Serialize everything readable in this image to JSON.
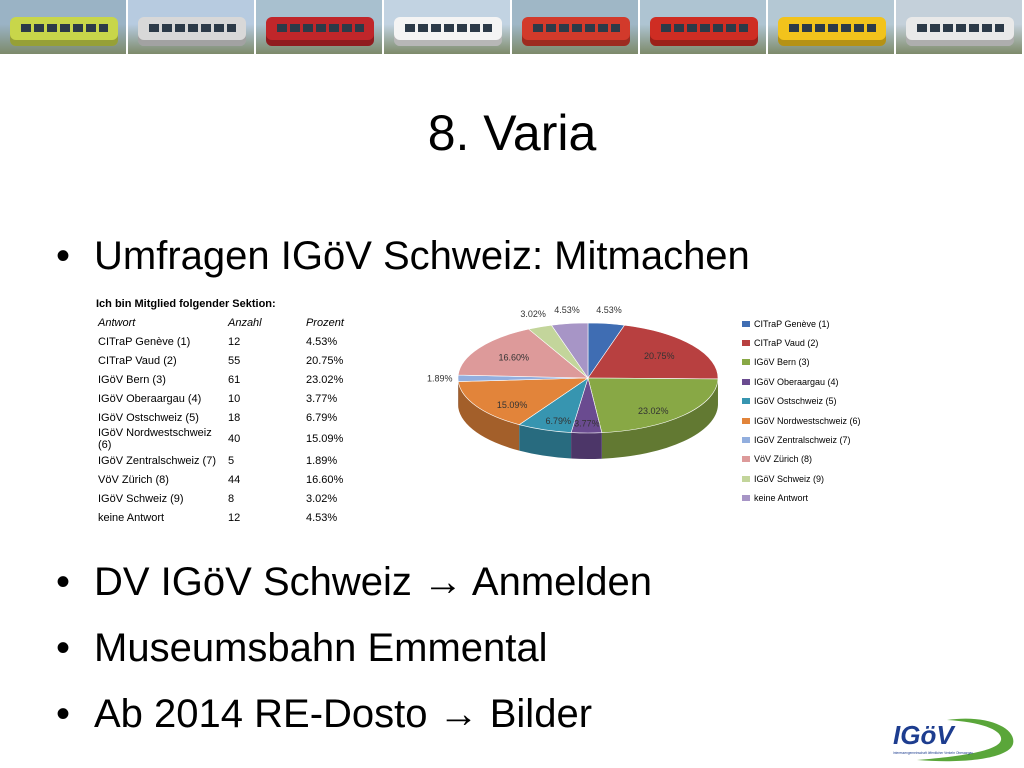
{
  "banner": {
    "photos": [
      {
        "name": "photo-train-green",
        "sky": "#9ab3c5",
        "vehicle": "#c8d64a"
      },
      {
        "name": "photo-cable-car",
        "sky": "#b7cbe0",
        "vehicle": "#d8d8d8"
      },
      {
        "name": "photo-red-train",
        "sky": "#a8c0cf",
        "vehicle": "#c0262a"
      },
      {
        "name": "photo-boat",
        "sky": "#c2d3e2",
        "vehicle": "#f4f4f4"
      },
      {
        "name": "photo-tram",
        "sky": "#9fb7c6",
        "vehicle": "#d23a2b"
      },
      {
        "name": "photo-bus-red",
        "sky": "#aec4d2",
        "vehicle": "#cf2d23"
      },
      {
        "name": "photo-bus-yellow",
        "sky": "#b4c8d4",
        "vehicle": "#f2c31c"
      },
      {
        "name": "photo-train-white",
        "sky": "#c4d0da",
        "vehicle": "#e9e9e9"
      }
    ]
  },
  "slide": {
    "title": "8. Varia",
    "bullet_marker": "•",
    "bullets": [
      "Umfragen IGöV Schweiz: Mitmachen",
      "DV IGöV Schweiz → Anmelden",
      "Museumsbahn Emmental",
      "Ab 2014 RE-Dosto → Bilder"
    ]
  },
  "survey_table": {
    "heading": "Ich bin Mitglied folgender Sektion:",
    "columns": [
      "Antwort",
      "Anzahl",
      "Prozent"
    ],
    "rows": [
      [
        "CITraP Genève (1)",
        "12",
        "4.53%"
      ],
      [
        "CITraP Vaud (2)",
        "55",
        "20.75%"
      ],
      [
        "IGöV Bern (3)",
        "61",
        "23.02%"
      ],
      [
        "IGöV Oberaargau (4)",
        "10",
        "3.77%"
      ],
      [
        "IGöV Ostschweiz (5)",
        "18",
        "6.79%"
      ],
      [
        "IGöV Nordwestschweiz (6)",
        "40",
        "15.09%"
      ],
      [
        "IGöV Zentralschweiz (7)",
        "5",
        "1.89%"
      ],
      [
        "VöV Zürich (8)",
        "44",
        "16.60%"
      ],
      [
        "IGöV Schweiz (9)",
        "8",
        "3.02%"
      ],
      [
        "keine Antwort",
        "12",
        "4.53%"
      ]
    ]
  },
  "chart_data": {
    "type": "pie",
    "title": "",
    "categories": [
      "CITraP Genève (1)",
      "CITraP Vaud (2)",
      "IGöV Bern (3)",
      "IGöV Oberaargau (4)",
      "IGöV Ostschweiz (5)",
      "IGöV Nordwestschweiz (6)",
      "IGöV Zentralschweiz (7)",
      "VöV Zürich (8)",
      "IGöV Schweiz (9)",
      "keine Antwort"
    ],
    "values": [
      4.53,
      20.75,
      23.02,
      3.77,
      6.79,
      15.09,
      1.89,
      16.6,
      3.02,
      4.53
    ],
    "labels": [
      "4.53%",
      "20.75%",
      "23.02%",
      "3.77%",
      "6.79%",
      "15.09%",
      "1.89%",
      "16.60%",
      "3.02%",
      "4.53%"
    ],
    "colors": [
      "#3f6db3",
      "#b84040",
      "#88a845",
      "#6a4b90",
      "#3795b0",
      "#e2843a",
      "#92aede",
      "#dd9a9a",
      "#c3d59b",
      "#a795c6"
    ],
    "legend_position": "right",
    "three_d": true
  },
  "logo": {
    "text": "IGöV",
    "subtitle": "Interessengemeinschaft öffentlicher Verkehr Oberaargau",
    "text_color": "#1d3d8f",
    "swoosh_color": "#5aa63a"
  }
}
